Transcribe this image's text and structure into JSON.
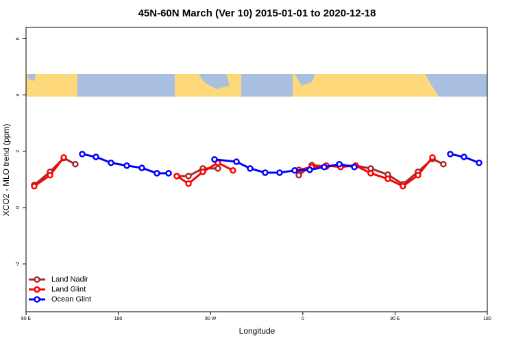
{
  "chart_data": {
    "type": "line",
    "title": "45N-60N March (Ver 10)   2015-01-01 to 2020-12-18",
    "xlabel": "Longitude",
    "ylabel": "XCO2 - MLO trend (ppm)",
    "xlim": [
      90,
      540
    ],
    "ylim": [
      -3.7,
      6.4
    ],
    "xticks": [
      {
        "value": 90,
        "label": "90 E"
      },
      180,
      {
        "value": 270,
        "label": "90 W"
      },
      {
        "value": 360,
        "label": "0"
      },
      {
        "value": 450,
        "label": "90 E"
      },
      {
        "value": 540,
        "label": "180"
      }
    ],
    "yticks": [
      -2,
      0,
      2,
      4,
      6
    ],
    "legend": "bottom-left",
    "series": [
      {
        "name": "Land Nadir",
        "color": "#a52a2a",
        "x": [
          98.0,
          113.4,
          126.8,
          138.1,
          null,
          237.1,
          248.5,
          262.5,
          277.2,
          null,
          356.1,
          368.8,
          382.9,
          396.9,
          411.6,
          426.3,
          443.0,
          457.7,
          472.4,
          486.5,
          497.2
        ],
        "values": [
          0.8,
          1.27,
          1.76,
          1.54,
          null,
          1.12,
          1.12,
          1.39,
          1.39,
          null,
          1.15,
          1.51,
          1.46,
          1.49,
          1.49,
          1.39,
          1.17,
          0.83,
          1.27,
          1.73,
          1.54
        ]
      },
      {
        "name": "Land Glint",
        "color": "#ff0000",
        "x": [
          98.0,
          113.4,
          126.8,
          null,
          237.1,
          248.5,
          262.5,
          277.2,
          291.9,
          null,
          356.1,
          368.8,
          382.9,
          396.9,
          411.6,
          426.3,
          443.0,
          457.7,
          472.4,
          486.5
        ],
        "values": [
          0.76,
          1.15,
          1.78,
          null,
          1.12,
          0.85,
          1.27,
          1.59,
          1.32,
          null,
          1.34,
          1.44,
          1.49,
          1.44,
          1.49,
          1.22,
          1.02,
          0.76,
          1.15,
          1.78
        ]
      },
      {
        "name": "Ocean Glint",
        "color": "#0000ff",
        "x": [
          144.8,
          158.2,
          172.9,
          188.3,
          203.0,
          217.7,
          229.1,
          null,
          273.9,
          295.3,
          308.6,
          323.3,
          337.4,
          352.1,
          366.8,
          380.9,
          395.6,
          410.3,
          null,
          503.9,
          517.3,
          532.0
        ],
        "values": [
          1.9,
          1.8,
          1.59,
          1.49,
          1.41,
          1.22,
          1.22,
          null,
          1.71,
          1.63,
          1.39,
          1.24,
          1.24,
          1.32,
          1.34,
          1.44,
          1.54,
          1.44,
          null,
          1.9,
          1.8,
          1.59
        ]
      }
    ]
  }
}
